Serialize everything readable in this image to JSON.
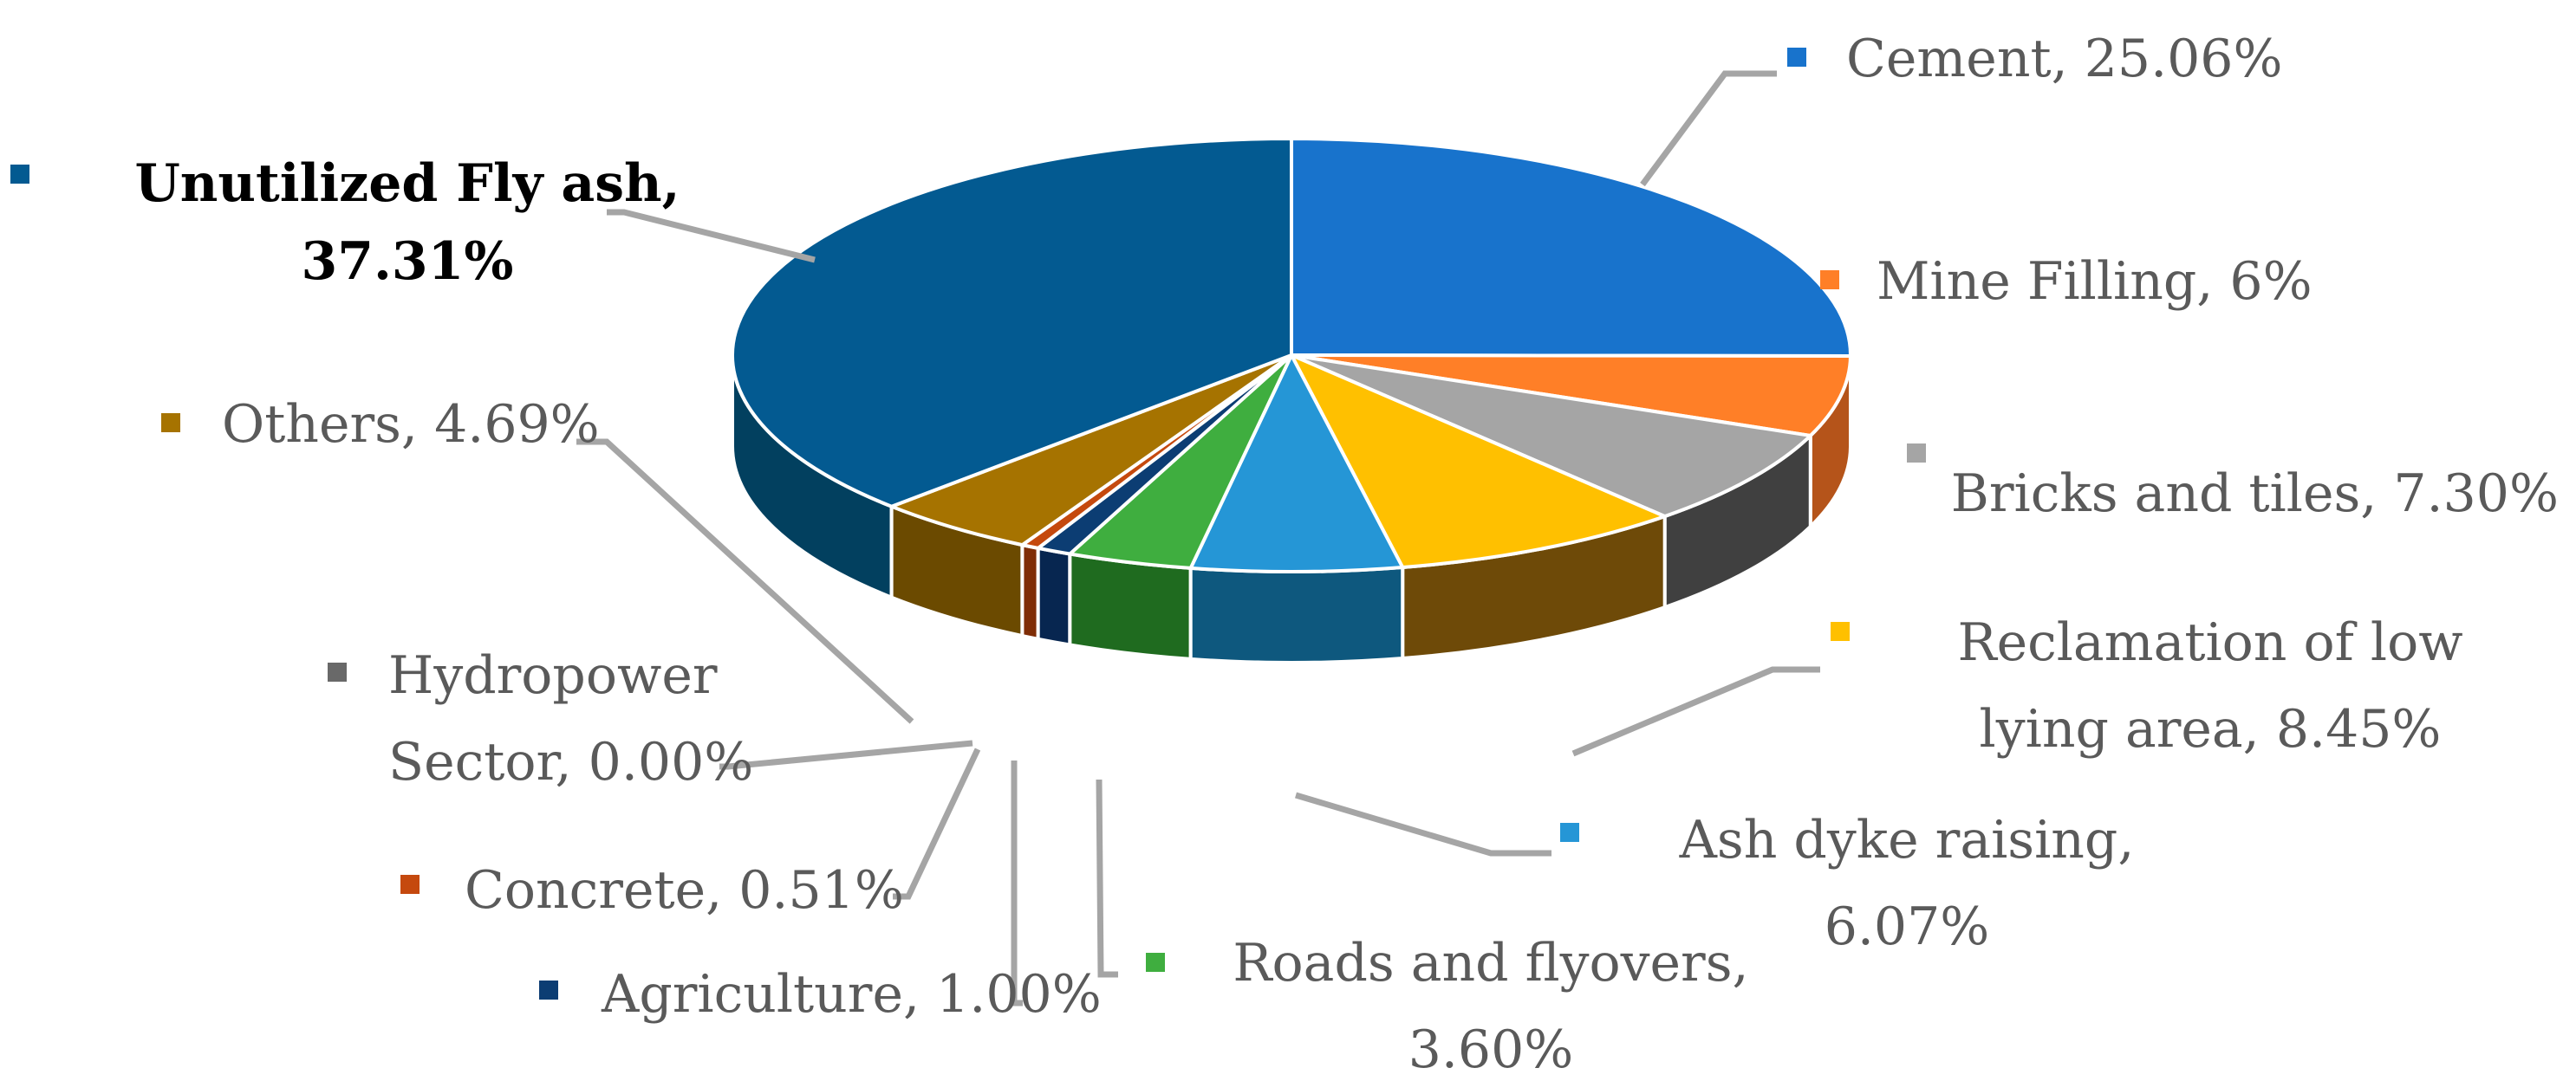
{
  "chart_data": {
    "type": "pie",
    "style": "3d",
    "title": "",
    "slices": [
      {
        "label": "Cement, 25.06%",
        "lines": [
          "Cement, 25.06%"
        ],
        "value": 25.06,
        "color": "#1873cc",
        "side_color": "#0f4c8c"
      },
      {
        "label": "Mine Filling, 6%",
        "lines": [
          "Mine Filling, 6%"
        ],
        "value": 6.0,
        "color": "#ff7f27",
        "side_color": "#b5541a"
      },
      {
        "label": "Bricks and tiles, 7.30%",
        "lines": [
          "Bricks and tiles, 7.30%"
        ],
        "value": 7.3,
        "color": "#a5a5a5",
        "side_color": "#404040"
      },
      {
        "label": "Reclamation of low lying area, 8.45%",
        "lines": [
          "Reclamation of low",
          "lying area, 8.45%"
        ],
        "value": 8.45,
        "color": "#ffc000",
        "side_color": "#6e4a08"
      },
      {
        "label": "Ash dyke raising, 6.07%",
        "lines": [
          "Ash dyke raising,",
          "6.07%"
        ],
        "value": 6.07,
        "color": "#2596d6",
        "side_color": "#0e587e"
      },
      {
        "label": "Roads and flyovers, 3.60%",
        "lines": [
          "Roads and flyovers,",
          "3.60%"
        ],
        "value": 3.6,
        "color": "#3fae3f",
        "side_color": "#1f6b1f"
      },
      {
        "label": "Agriculture, 1.00%",
        "lines": [
          "Agriculture, 1.00%"
        ],
        "value": 1.0,
        "color": "#0c3d73",
        "side_color": "#072650"
      },
      {
        "label": "Concrete, 0.51%",
        "lines": [
          "Concrete, 0.51%"
        ],
        "value": 0.51,
        "color": "#c5490e",
        "side_color": "#7f2d06"
      },
      {
        "label": "Hydropower Sector, 0.00%",
        "lines": [
          "Hydropower",
          "Sector, 0.00%"
        ],
        "value": 0.0,
        "color": "#696969",
        "side_color": "#404040"
      },
      {
        "label": "Others, 4.69%",
        "lines": [
          "Others, 4.69%"
        ],
        "value": 4.69,
        "color": "#a67300",
        "side_color": "#6b4a00"
      },
      {
        "label": "Unutilized Fly ash, 37.31%",
        "lines": [
          "Unutilized Fly ash,",
          "37.31%"
        ],
        "value": 37.31,
        "color": "#035a91",
        "side_color": "#02405f",
        "bold": true
      }
    ],
    "legend": "labels-with-leader-lines"
  }
}
